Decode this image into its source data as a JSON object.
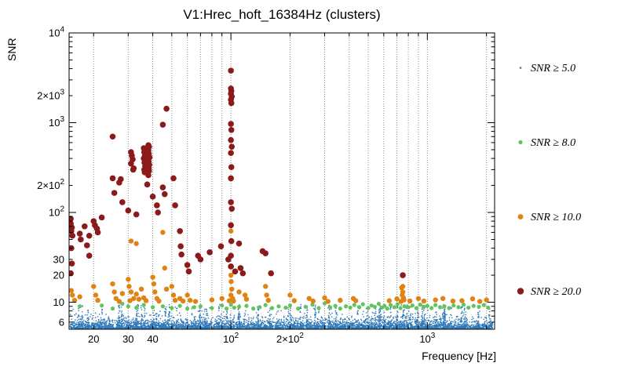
{
  "chart_data": {
    "type": "scatter",
    "title": "V1:Hrec_hoft_16384Hz (clusters)",
    "xlabel": "Frequency [Hz]",
    "ylabel": "SNR",
    "x_scale": "log",
    "y_scale": "log",
    "xlim": [
      15,
      2200
    ],
    "ylim": [
      5,
      10000
    ],
    "grid": {
      "vertical_dotted": true,
      "horizontal": false
    },
    "x_ticks": [
      {
        "v": 20,
        "label": "20"
      },
      {
        "v": 30,
        "label": "30"
      },
      {
        "v": 40,
        "label": "40"
      },
      {
        "v": 100,
        "label": "10^2"
      },
      {
        "v": 200,
        "label": "2x10^2"
      },
      {
        "v": 1000,
        "label": "10^3"
      }
    ],
    "y_ticks": [
      {
        "v": 6,
        "label": "6"
      },
      {
        "v": 10,
        "label": "10"
      },
      {
        "v": 20,
        "label": "20"
      },
      {
        "v": 30,
        "label": "30"
      },
      {
        "v": 100,
        "label": "10^2"
      },
      {
        "v": 200,
        "label": "2x10^2"
      },
      {
        "v": 1000,
        "label": "10^3"
      },
      {
        "v": 2000,
        "label": "2x10^3"
      },
      {
        "v": 10000,
        "label": "10^4"
      }
    ],
    "legend": {
      "position": "right-outside",
      "entries": [
        {
          "label": "SNR ≥ 5.0",
          "color": "#2e78b8",
          "marker_r": 1.3
        },
        {
          "label": "SNR ≥ 8.0",
          "color": "#63c45e",
          "marker_r": 2.6
        },
        {
          "label": "SNR ≥ 10.0",
          "color": "#e08214",
          "marker_r": 3.4
        },
        {
          "label": "SNR ≥ 20.0",
          "color": "#8b1a1a",
          "marker_r": 4.2
        }
      ]
    },
    "series": [
      {
        "name": "SNR >= 5.0 noise floor",
        "color": "#2e78b8",
        "marker_px": 0.8,
        "noise": {
          "seed": 1337,
          "base_count": 5200,
          "base_scale": 0.55,
          "freq_min": 15.2,
          "freq_max": 2150,
          "snr_floor": 5.0,
          "snr_cap": 9.6,
          "spike_count": 62,
          "spike_points": 18,
          "spike_max_extra": 4.4
        }
      },
      {
        "name": "SNR >= 8.0",
        "color": "#63c45e",
        "marker_px": 2.6,
        "points": [
          [
            17,
            9.0
          ],
          [
            22,
            9.2
          ],
          [
            25,
            8.5
          ],
          [
            28,
            9.6
          ],
          [
            30,
            9.0
          ],
          [
            33,
            8.7
          ],
          [
            36,
            9.3
          ],
          [
            40,
            8.8
          ],
          [
            45,
            9.0
          ],
          [
            50,
            8.6
          ],
          [
            55,
            9.1
          ],
          [
            60,
            8.5
          ],
          [
            65,
            8.8
          ],
          [
            70,
            9.0
          ],
          [
            80,
            8.6
          ],
          [
            90,
            9.2
          ],
          [
            95,
            8.5
          ],
          [
            100,
            9.4
          ],
          [
            104,
            8.7
          ],
          [
            110,
            8.9
          ],
          [
            120,
            9.1
          ],
          [
            130,
            8.5
          ],
          [
            140,
            8.8
          ],
          [
            150,
            9.3
          ],
          [
            162,
            8.6
          ],
          [
            175,
            9.0
          ],
          [
            190,
            8.7
          ],
          [
            200,
            9.2
          ],
          [
            220,
            8.5
          ],
          [
            240,
            8.9
          ],
          [
            260,
            9.4
          ],
          [
            280,
            8.6
          ],
          [
            300,
            9.7
          ],
          [
            320,
            8.8
          ],
          [
            340,
            9.1
          ],
          [
            360,
            8.5
          ],
          [
            385,
            9.0
          ],
          [
            405,
            8.7
          ],
          [
            425,
            9.3
          ],
          [
            450,
            8.8
          ],
          [
            470,
            9.5
          ],
          [
            500,
            8.6
          ],
          [
            520,
            9.2
          ],
          [
            540,
            8.9
          ],
          [
            565,
            9.6
          ],
          [
            585,
            8.7
          ],
          [
            605,
            9.1
          ],
          [
            625,
            8.5
          ],
          [
            650,
            9.3
          ],
          [
            680,
            8.8
          ],
          [
            705,
            9.5
          ],
          [
            730,
            8.6
          ],
          [
            765,
            9.0
          ],
          [
            800,
            8.8
          ],
          [
            840,
            9.2
          ],
          [
            880,
            8.6
          ],
          [
            920,
            9.4
          ],
          [
            960,
            8.9
          ],
          [
            1000,
            9.1
          ],
          [
            1050,
            8.6
          ],
          [
            1100,
            9.3
          ],
          [
            1160,
            8.8
          ],
          [
            1220,
            9.0
          ],
          [
            1290,
            8.6
          ],
          [
            1360,
            9.2
          ],
          [
            1440,
            8.8
          ],
          [
            1530,
            9.4
          ],
          [
            1620,
            8.7
          ],
          [
            1720,
            9.1
          ],
          [
            1830,
            8.9
          ],
          [
            1940,
            9.3
          ],
          [
            2040,
            8.7
          ]
        ]
      },
      {
        "name": "SNR >= 10.0",
        "color": "#e08214",
        "marker_px": 3.2,
        "points": [
          [
            15.4,
            13.5
          ],
          [
            15.6,
            12
          ],
          [
            16,
            10.5
          ],
          [
            17,
            11.5
          ],
          [
            20,
            15
          ],
          [
            20.5,
            12
          ],
          [
            21,
            10.5
          ],
          [
            25,
            16
          ],
          [
            25.5,
            13
          ],
          [
            26,
            11
          ],
          [
            27,
            10.2
          ],
          [
            28,
            12.5
          ],
          [
            30,
            18
          ],
          [
            30.3,
            15
          ],
          [
            31,
            13
          ],
          [
            31,
            48
          ],
          [
            33,
            45
          ],
          [
            32,
            11
          ],
          [
            30.6,
            10.4
          ],
          [
            33,
            12.3
          ],
          [
            34,
            10.8
          ],
          [
            35,
            14
          ],
          [
            36,
            11.2
          ],
          [
            37,
            10.4
          ],
          [
            40,
            19
          ],
          [
            40.5,
            16
          ],
          [
            41,
            13
          ],
          [
            42,
            11
          ],
          [
            43,
            10.3
          ],
          [
            45,
            60
          ],
          [
            46,
            24
          ],
          [
            47,
            14
          ],
          [
            50,
            15
          ],
          [
            51,
            12
          ],
          [
            52,
            10.5
          ],
          [
            55,
            11
          ],
          [
            57,
            10.3
          ],
          [
            60,
            12
          ],
          [
            62,
            10.5
          ],
          [
            66,
            10.2
          ],
          [
            80,
            10.6
          ],
          [
            90,
            11
          ],
          [
            98,
            10.4
          ],
          [
            100,
            62
          ],
          [
            100,
            20
          ],
          [
            100.3,
            17
          ],
          [
            101,
            14
          ],
          [
            100,
            12
          ],
          [
            102,
            11
          ],
          [
            103,
            10.3
          ],
          [
            110,
            13
          ],
          [
            118,
            12
          ],
          [
            120,
            10.8
          ],
          [
            150,
            15
          ],
          [
            152,
            12
          ],
          [
            155,
            10.5
          ],
          [
            200,
            12
          ],
          [
            210,
            10.4
          ],
          [
            250,
            11
          ],
          [
            262,
            10.3
          ],
          [
            300,
            11.2
          ],
          [
            312,
            10.2
          ],
          [
            360,
            10.5
          ],
          [
            420,
            11
          ],
          [
            432,
            10.4
          ],
          [
            735,
            10.2
          ],
          [
            740,
            14.5
          ],
          [
            745,
            12
          ],
          [
            750,
            13
          ],
          [
            750,
            15
          ],
          [
            755,
            11.2
          ],
          [
            760,
            10.6
          ],
          [
            640,
            10.4
          ],
          [
            700,
            10.9
          ],
          [
            815,
            10.3
          ],
          [
            900,
            11
          ],
          [
            960,
            10.3
          ],
          [
            1100,
            10.6
          ],
          [
            1200,
            11
          ],
          [
            1350,
            10.3
          ],
          [
            1500,
            10.4
          ],
          [
            1700,
            10.9
          ],
          [
            1850,
            10.2
          ],
          [
            2000,
            10.6
          ]
        ]
      },
      {
        "name": "SNR >= 20.0",
        "color": "#8b1a1a",
        "marker_px": 3.8,
        "points": [
          [
            15.3,
            85
          ],
          [
            15.3,
            75
          ],
          [
            15.5,
            68
          ],
          [
            15.4,
            62
          ],
          [
            15.6,
            55
          ],
          [
            15.4,
            40
          ],
          [
            15.5,
            27
          ],
          [
            15.3,
            21
          ],
          [
            17,
            58
          ],
          [
            17.2,
            50
          ],
          [
            18,
            70
          ],
          [
            18.5,
            43
          ],
          [
            19,
            55
          ],
          [
            19,
            33
          ],
          [
            20,
            80
          ],
          [
            20.3,
            72
          ],
          [
            20.8,
            66
          ],
          [
            21,
            60
          ],
          [
            22,
            88
          ],
          [
            25,
            700
          ],
          [
            25,
            240
          ],
          [
            25.5,
            165
          ],
          [
            27,
            215
          ],
          [
            27.5,
            235
          ],
          [
            28,
            130
          ],
          [
            30,
            105
          ],
          [
            31,
            470
          ],
          [
            31.3,
            430
          ],
          [
            31.6,
            390
          ],
          [
            31,
            350
          ],
          [
            32,
            310
          ],
          [
            31.8,
            300
          ],
          [
            33,
            95
          ],
          [
            36,
            520
          ],
          [
            36.2,
            470
          ],
          [
            36.5,
            430
          ],
          [
            36,
            400
          ],
          [
            36.3,
            360
          ],
          [
            36.6,
            330
          ],
          [
            36.2,
            300
          ],
          [
            36.4,
            280
          ],
          [
            38,
            560
          ],
          [
            38.3,
            540
          ],
          [
            38,
            490
          ],
          [
            38.2,
            450
          ],
          [
            38.5,
            410
          ],
          [
            38.1,
            370
          ],
          [
            38.4,
            340
          ],
          [
            38.2,
            310
          ],
          [
            38.3,
            290
          ],
          [
            38,
            260
          ],
          [
            37.5,
            205
          ],
          [
            40,
            150
          ],
          [
            42,
            120
          ],
          [
            42.5,
            100
          ],
          [
            45,
            190
          ],
          [
            45,
            950
          ],
          [
            46,
            160
          ],
          [
            47,
            1430
          ],
          [
            51,
            240
          ],
          [
            52,
            120
          ],
          [
            55,
            62
          ],
          [
            55.5,
            42
          ],
          [
            56,
            34
          ],
          [
            60,
            26
          ],
          [
            61,
            22
          ],
          [
            68,
            33
          ],
          [
            70,
            30
          ],
          [
            78,
            36
          ],
          [
            89,
            42
          ],
          [
            100,
            3800
          ],
          [
            100,
            2400
          ],
          [
            100.5,
            2250
          ],
          [
            100,
            2100
          ],
          [
            101,
            1950
          ],
          [
            100,
            1800
          ],
          [
            100.5,
            1650
          ],
          [
            100,
            970
          ],
          [
            100.5,
            830
          ],
          [
            100,
            640
          ],
          [
            101,
            540
          ],
          [
            100,
            460
          ],
          [
            100.5,
            320
          ],
          [
            100,
            240
          ],
          [
            100,
            130
          ],
          [
            101,
            110
          ],
          [
            100,
            72
          ],
          [
            100.5,
            48
          ],
          [
            100,
            33
          ],
          [
            100,
            25
          ],
          [
            97,
            30
          ],
          [
            105,
            22
          ],
          [
            110,
            45
          ],
          [
            112,
            24
          ],
          [
            115,
            21
          ],
          [
            145,
            37
          ],
          [
            150,
            35
          ],
          [
            160,
            21
          ],
          [
            750,
            20
          ]
        ]
      }
    ]
  }
}
